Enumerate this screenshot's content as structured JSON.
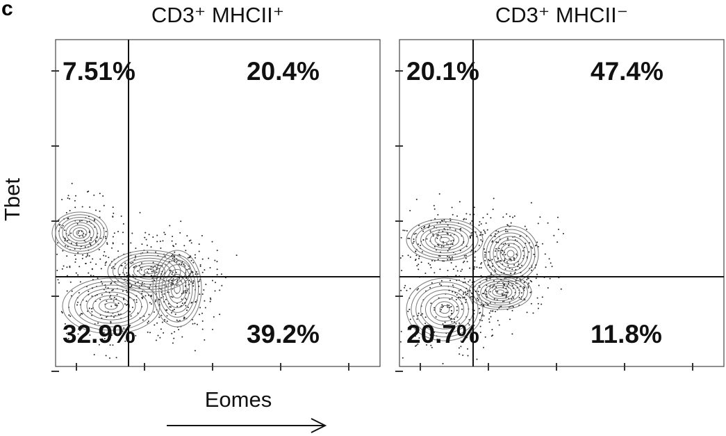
{
  "figure": {
    "panel_label": "c",
    "y_axis_label": "Tbet",
    "x_axis_label": "Eomes",
    "panels": [
      {
        "title": "CD3⁺ MHCII⁺",
        "quadrants": {
          "top_left": "7.51%",
          "top_right": "20.4%",
          "bottom_left": "32.9%",
          "bottom_right": "39.2%"
        }
      },
      {
        "title": "CD3⁺ MHCII⁻",
        "quadrants": {
          "top_left": "20.1%",
          "top_right": "47.4%",
          "bottom_left": "20.7%",
          "bottom_right": "11.8%"
        }
      }
    ]
  }
}
